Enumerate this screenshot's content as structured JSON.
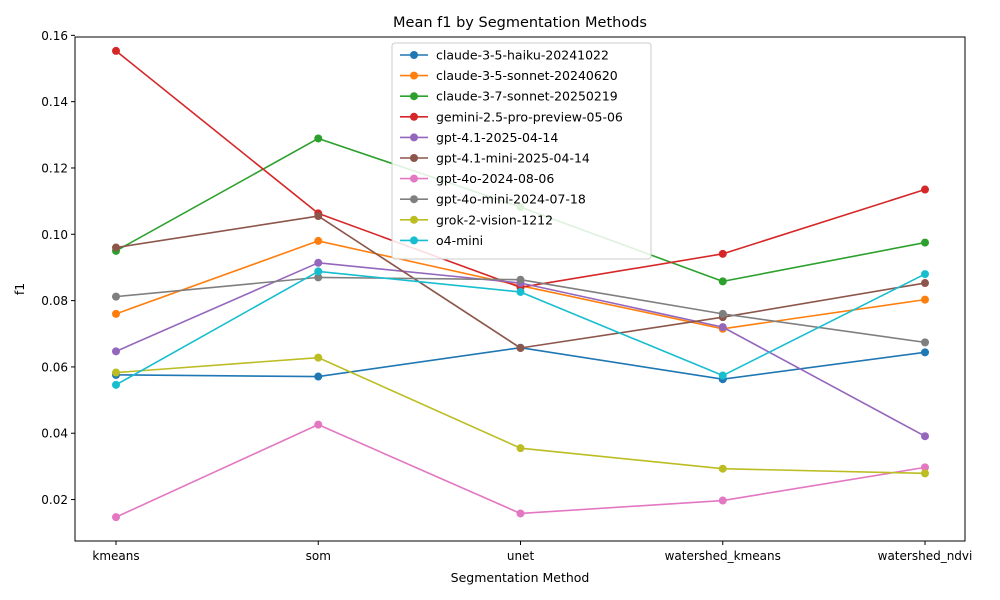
{
  "chart_data": {
    "type": "line",
    "title": "Mean f1 by Segmentation Methods",
    "xlabel": "Segmentation Method",
    "ylabel": "f1",
    "categories": [
      "kmeans",
      "som",
      "unet",
      "watershed_kmeans",
      "watershed_ndvi"
    ],
    "ylim": [
      0.0075,
      0.1595
    ],
    "yticks": [
      0.02,
      0.04,
      0.06,
      0.08,
      0.1,
      0.12,
      0.14,
      0.16
    ],
    "ytick_labels": [
      "0.02",
      "0.04",
      "0.06",
      "0.08",
      "0.10",
      "0.12",
      "0.14",
      "0.16"
    ],
    "grid": false,
    "legend_position": "upper center",
    "series": [
      {
        "name": "claude-3-5-haiku-20241022",
        "color": "#1f77b4",
        "values": [
          0.0576,
          0.0571,
          0.0658,
          0.0563,
          0.0644
        ]
      },
      {
        "name": "claude-3-5-sonnet-20240620",
        "color": "#ff7f0e",
        "values": [
          0.076,
          0.098,
          0.0845,
          0.0715,
          0.0803
        ]
      },
      {
        "name": "claude-3-7-sonnet-20250219",
        "color": "#2ca02c",
        "values": [
          0.095,
          0.1289,
          0.1082,
          0.0858,
          0.0975
        ]
      },
      {
        "name": "gemini-2.5-pro-preview-05-06",
        "color": "#d62728",
        "values": [
          0.1553,
          0.1063,
          0.084,
          0.0941,
          0.1135
        ]
      },
      {
        "name": "gpt-4.1-2025-04-14",
        "color": "#9467bd",
        "values": [
          0.0647,
          0.0914,
          0.0853,
          0.072,
          0.0391
        ]
      },
      {
        "name": "gpt-4.1-mini-2025-04-14",
        "color": "#8c564b",
        "values": [
          0.096,
          0.1055,
          0.0657,
          0.075,
          0.0853
        ]
      },
      {
        "name": "gpt-4o-2024-08-06",
        "color": "#e377c2",
        "values": [
          0.0147,
          0.0426,
          0.0158,
          0.0197,
          0.0297
        ]
      },
      {
        "name": "gpt-4o-mini-2024-07-18",
        "color": "#7f7f7f",
        "values": [
          0.0812,
          0.087,
          0.0863,
          0.076,
          0.0674
        ]
      },
      {
        "name": "grok-2-vision-1212",
        "color": "#bcbd22",
        "values": [
          0.0583,
          0.0628,
          0.0355,
          0.0293,
          0.0279
        ]
      },
      {
        "name": "o4-mini",
        "color": "#17becf",
        "values": [
          0.0546,
          0.0888,
          0.0826,
          0.0574,
          0.088
        ]
      }
    ]
  }
}
